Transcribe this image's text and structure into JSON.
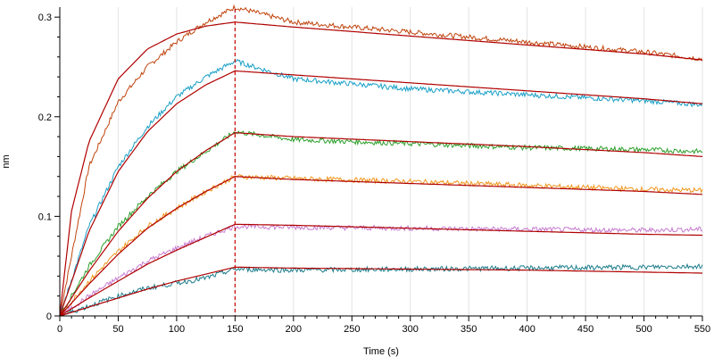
{
  "chart_data": {
    "type": "line",
    "title": "",
    "xlabel": "Time (s)",
    "ylabel": "nm",
    "xlim": [
      0,
      550
    ],
    "ylim": [
      0,
      0.31
    ],
    "x_ticks": [
      0,
      50,
      100,
      150,
      200,
      250,
      300,
      350,
      400,
      450,
      500,
      550
    ],
    "y_ticks": [
      0,
      0.1,
      0.2,
      0.3
    ],
    "x_tick_labels": [
      "0",
      "50",
      "100",
      "150",
      "200",
      "250",
      "300",
      "350",
      "400",
      "450",
      "500",
      "550"
    ],
    "y_tick_labels": [
      "0",
      "0.1",
      "0.2",
      "0.3"
    ],
    "grid": "vertical",
    "legend": "none",
    "marker_line": {
      "x": 150,
      "color": "#cc0000",
      "style": "dashed"
    },
    "fit_color": "#b00000",
    "series": [
      {
        "color": "#c0440d",
        "x": [
          0,
          25,
          50,
          75,
          100,
          125,
          150,
          200,
          300,
          400,
          500,
          550
        ],
        "values": [
          0,
          0.15,
          0.215,
          0.25,
          0.275,
          0.295,
          0.31,
          0.295,
          0.285,
          0.275,
          0.265,
          0.258
        ]
      },
      {
        "color": "#1aa0c8",
        "x": [
          0,
          25,
          50,
          75,
          100,
          125,
          150,
          200,
          300,
          400,
          500,
          550
        ],
        "values": [
          0,
          0.09,
          0.15,
          0.19,
          0.22,
          0.24,
          0.256,
          0.238,
          0.228,
          0.222,
          0.216,
          0.212
        ]
      },
      {
        "color": "#2ca02c",
        "x": [
          0,
          25,
          50,
          75,
          100,
          125,
          150,
          200,
          300,
          400,
          500,
          550
        ],
        "values": [
          0,
          0.05,
          0.09,
          0.12,
          0.145,
          0.165,
          0.185,
          0.177,
          0.173,
          0.169,
          0.167,
          0.165
        ]
      },
      {
        "color": "#f0961e",
        "x": [
          0,
          25,
          50,
          75,
          100,
          125,
          150,
          200,
          300,
          400,
          500,
          550
        ],
        "values": [
          0,
          0.035,
          0.065,
          0.09,
          0.108,
          0.125,
          0.14,
          0.138,
          0.135,
          0.131,
          0.127,
          0.126
        ]
      },
      {
        "color": "#c77cd0",
        "x": [
          0,
          25,
          50,
          75,
          100,
          125,
          150,
          200,
          300,
          400,
          500,
          550
        ],
        "values": [
          0,
          0.02,
          0.038,
          0.055,
          0.068,
          0.08,
          0.09,
          0.089,
          0.088,
          0.087,
          0.086,
          0.087
        ]
      },
      {
        "color": "#1d7d8c",
        "x": [
          0,
          25,
          50,
          75,
          100,
          125,
          150,
          200,
          300,
          400,
          500,
          550
        ],
        "values": [
          0,
          0.01,
          0.02,
          0.028,
          0.033,
          0.038,
          0.047,
          0.046,
          0.047,
          0.048,
          0.049,
          0.05
        ]
      }
    ],
    "fits": [
      {
        "x": [
          0,
          10,
          25,
          50,
          75,
          100,
          125,
          150,
          200,
          300,
          400,
          500,
          550
        ],
        "values": [
          0,
          0.105,
          0.175,
          0.238,
          0.268,
          0.283,
          0.291,
          0.295,
          0.29,
          0.281,
          0.272,
          0.263,
          0.257
        ]
      },
      {
        "x": [
          0,
          25,
          50,
          75,
          100,
          125,
          150,
          200,
          300,
          400,
          500,
          550
        ],
        "values": [
          0,
          0.085,
          0.145,
          0.185,
          0.213,
          0.232,
          0.246,
          0.242,
          0.234,
          0.226,
          0.218,
          0.213
        ]
      },
      {
        "x": [
          0,
          25,
          50,
          75,
          100,
          125,
          150,
          200,
          300,
          400,
          500,
          550
        ],
        "values": [
          0,
          0.045,
          0.085,
          0.118,
          0.145,
          0.166,
          0.184,
          0.18,
          0.175,
          0.17,
          0.164,
          0.16
        ]
      },
      {
        "x": [
          0,
          25,
          50,
          75,
          100,
          125,
          150,
          200,
          300,
          400,
          500,
          550
        ],
        "values": [
          0,
          0.032,
          0.062,
          0.088,
          0.108,
          0.125,
          0.14,
          0.137,
          0.133,
          0.129,
          0.125,
          0.122
        ]
      },
      {
        "x": [
          0,
          25,
          50,
          75,
          100,
          125,
          150,
          200,
          300,
          400,
          500,
          550
        ],
        "values": [
          0,
          0.018,
          0.035,
          0.052,
          0.066,
          0.079,
          0.092,
          0.091,
          0.088,
          0.085,
          0.082,
          0.081
        ]
      },
      {
        "x": [
          0,
          25,
          50,
          75,
          100,
          125,
          150,
          200,
          300,
          400,
          500,
          550
        ],
        "values": [
          0,
          0.009,
          0.018,
          0.027,
          0.035,
          0.042,
          0.049,
          0.048,
          0.047,
          0.046,
          0.044,
          0.043
        ]
      }
    ]
  }
}
